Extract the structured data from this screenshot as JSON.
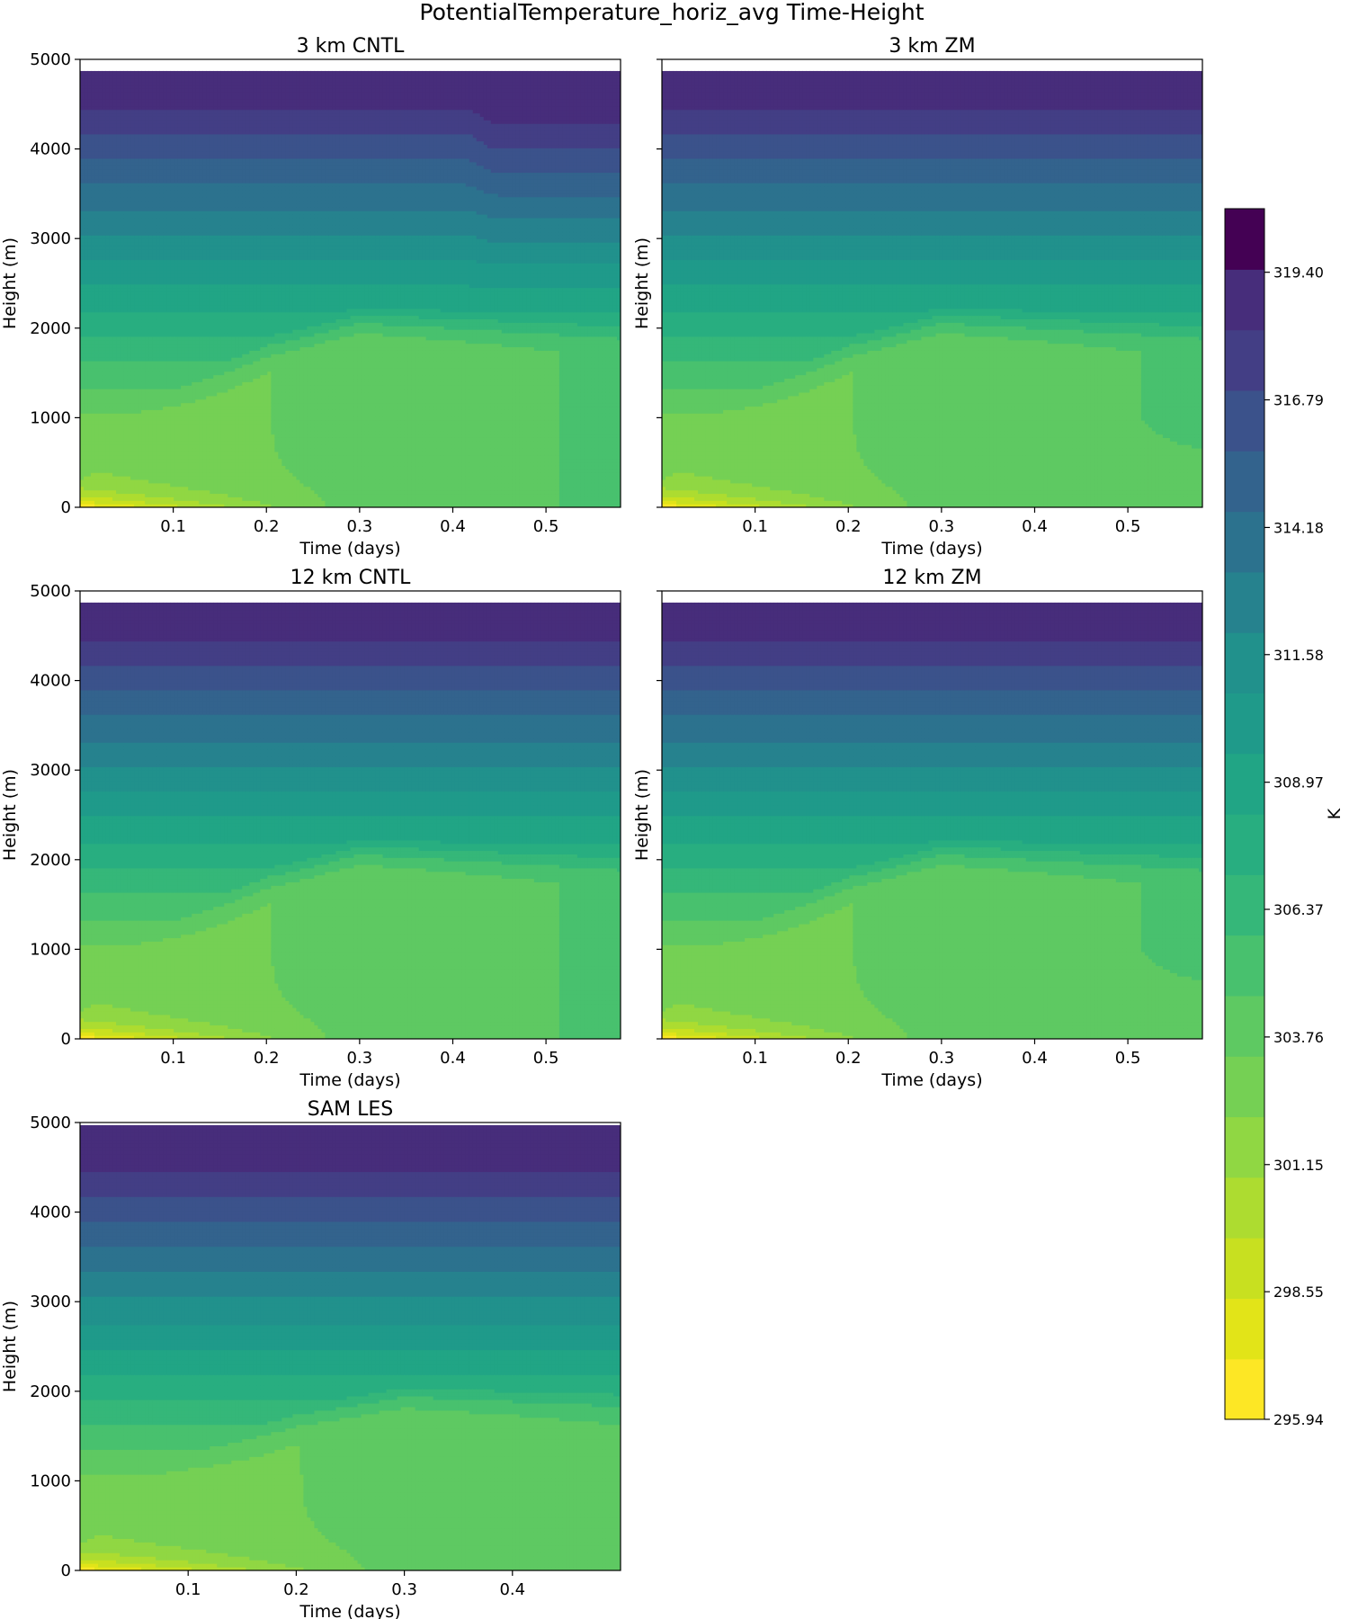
{
  "figure": {
    "suptitle": "PotentialTemperature_horiz_avg Time-Height",
    "colorbar": {
      "label": "K",
      "min": 295.94,
      "max": 320.7,
      "levels": 19,
      "tick_labels": [
        "295.94",
        "298.55",
        "301.15",
        "303.76",
        "306.37",
        "308.97",
        "311.58",
        "314.18",
        "316.79",
        "319.40"
      ],
      "tick_values": [
        295.94,
        298.55,
        301.15,
        303.76,
        306.37,
        308.97,
        311.58,
        314.18,
        316.79,
        319.4
      ],
      "colormap": "viridis",
      "colors": [
        "#fde725",
        "#e2e418",
        "#c8e020",
        "#addc30",
        "#90d743",
        "#75d054",
        "#5ec962",
        "#48c16e",
        "#35b779",
        "#28ae80",
        "#21a585",
        "#1f9a8a",
        "#21918c",
        "#26828e",
        "#2c728e",
        "#33638d",
        "#3b528b",
        "#433e85",
        "#472d7b",
        "#440154"
      ]
    }
  },
  "chart_data": [
    {
      "type": "heatmap",
      "title": "3 km CNTL",
      "xlabel": "Time (days)",
      "ylabel": "Height (m)",
      "xlim": [
        0.0,
        0.58
      ],
      "ylim": [
        0,
        5000
      ],
      "xticks": [
        "0.1",
        "0.2",
        "0.3",
        "0.4",
        "0.5"
      ],
      "yticks": [
        "0",
        "1000",
        "2000",
        "3000",
        "4000",
        "5000"
      ],
      "data_top_height": 4870,
      "surface_temperature_start": 296.0,
      "boundary_layer_heights": [
        {
          "t": 0.0,
          "h": 300
        },
        {
          "t": 0.1,
          "h": 900
        },
        {
          "t": 0.2,
          "h": 1500
        },
        {
          "t": 0.3,
          "h": 1850
        },
        {
          "t": 0.58,
          "h": 1700
        }
      ],
      "upper_level_disturbance_time": 0.43
    },
    {
      "type": "heatmap",
      "title": "3 km ZM",
      "xlabel": "Time (days)",
      "ylabel": "Height (m)",
      "xlim": [
        0.0,
        0.58
      ],
      "ylim": [
        0,
        5000
      ],
      "xticks": [
        "0.1",
        "0.2",
        "0.3",
        "0.4",
        "0.5"
      ],
      "yticks": [
        "0",
        "1000",
        "2000",
        "3000",
        "4000",
        "5000"
      ],
      "data_top_height": 4870,
      "surface_temperature_start": 296.0,
      "boundary_layer_heights": [
        {
          "t": 0.0,
          "h": 300
        },
        {
          "t": 0.1,
          "h": 900
        },
        {
          "t": 0.2,
          "h": 1500
        },
        {
          "t": 0.3,
          "h": 1850
        },
        {
          "t": 0.58,
          "h": 1700
        }
      ]
    },
    {
      "type": "heatmap",
      "title": "12 km CNTL",
      "xlabel": "Time (days)",
      "ylabel": "Height (m)",
      "xlim": [
        0.0,
        0.58
      ],
      "ylim": [
        0,
        5000
      ],
      "xticks": [
        "0.1",
        "0.2",
        "0.3",
        "0.4",
        "0.5"
      ],
      "yticks": [
        "0",
        "1000",
        "2000",
        "3000",
        "4000",
        "5000"
      ],
      "data_top_height": 4870,
      "surface_temperature_start": 296.0,
      "boundary_layer_heights": [
        {
          "t": 0.0,
          "h": 300
        },
        {
          "t": 0.1,
          "h": 900
        },
        {
          "t": 0.2,
          "h": 1500
        },
        {
          "t": 0.3,
          "h": 1850
        },
        {
          "t": 0.58,
          "h": 1700
        }
      ]
    },
    {
      "type": "heatmap",
      "title": "12 km ZM",
      "xlabel": "Time (days)",
      "ylabel": "Height (m)",
      "xlim": [
        0.0,
        0.58
      ],
      "ylim": [
        0,
        5000
      ],
      "xticks": [
        "0.1",
        "0.2",
        "0.3",
        "0.4",
        "0.5"
      ],
      "yticks": [
        "0",
        "1000",
        "2000",
        "3000",
        "4000",
        "5000"
      ],
      "data_top_height": 4870,
      "surface_temperature_start": 296.0,
      "boundary_layer_heights": [
        {
          "t": 0.0,
          "h": 300
        },
        {
          "t": 0.1,
          "h": 900
        },
        {
          "t": 0.2,
          "h": 1500
        },
        {
          "t": 0.3,
          "h": 1850
        },
        {
          "t": 0.58,
          "h": 1700
        }
      ]
    },
    {
      "type": "heatmap",
      "title": "SAM LES",
      "xlabel": "Time (days)",
      "ylabel": "Height (m)",
      "xlim": [
        0.0,
        0.5
      ],
      "ylim": [
        0,
        5000
      ],
      "xticks": [
        "0.1",
        "0.2",
        "0.3",
        "0.4"
      ],
      "yticks": [
        "0",
        "1000",
        "2000",
        "3000",
        "4000",
        "5000"
      ],
      "data_top_height": 4970,
      "surface_temperature_start": 296.0,
      "boundary_layer_heights": [
        {
          "t": 0.0,
          "h": 300
        },
        {
          "t": 0.1,
          "h": 900
        },
        {
          "t": 0.2,
          "h": 1400
        },
        {
          "t": 0.3,
          "h": 1700
        },
        {
          "t": 0.5,
          "h": 1600
        }
      ]
    }
  ]
}
